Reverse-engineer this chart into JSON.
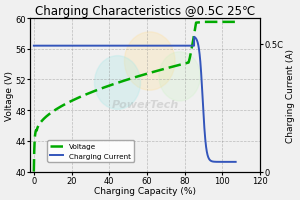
{
  "title": "Charging Characteristics @0.5C 25℃",
  "xlabel": "Charging Capacity (%)",
  "ylabel_left": "Voltage (V)",
  "ylabel_right": "Charging Current (A)",
  "xlim": [
    -2,
    120
  ],
  "ylim_left": [
    40.0,
    60.0
  ],
  "ylim_right": [
    0,
    0.6
  ],
  "xticks": [
    0,
    20,
    40,
    60,
    80,
    100,
    120
  ],
  "yticks_left": [
    40.0,
    44.0,
    48.0,
    52.0,
    56.0,
    60.0
  ],
  "yticks_right_vals": [
    0.0,
    0.5
  ],
  "yticks_right_labels": [
    "0",
    "0.5C"
  ],
  "voltage_color": "#00aa00",
  "current_color": "#3355bb",
  "legend_voltage": "Voltage",
  "legend_current": "Charging Current",
  "bg_color": "#f0f0f0",
  "grid_color": "#888888",
  "title_fontsize": 8.5,
  "axis_fontsize": 6.5,
  "tick_fontsize": 6.0
}
